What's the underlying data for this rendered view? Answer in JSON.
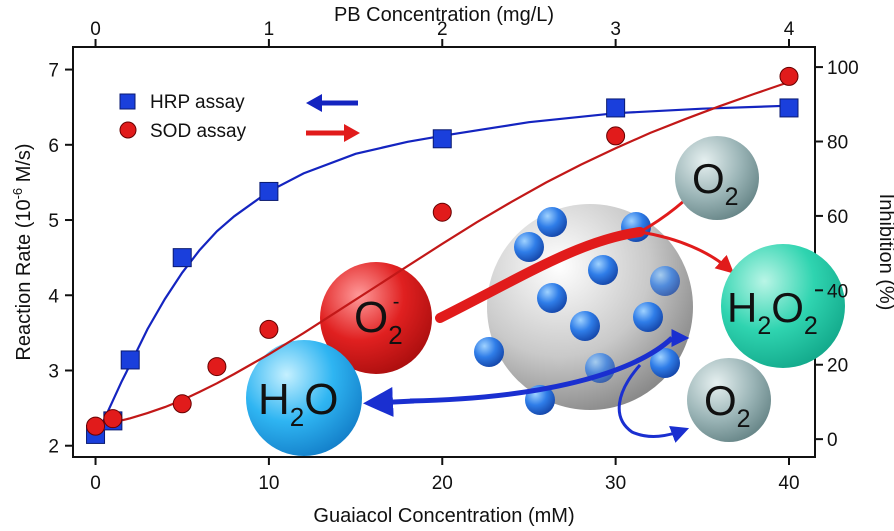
{
  "chart_data": {
    "type": "line",
    "x_bottom": {
      "label": "Guaiacol Concentration (mM)",
      "range": [
        -1.3,
        41.5
      ],
      "ticks": [
        "0",
        "10",
        "20",
        "30",
        "40"
      ],
      "tick_values": [
        0,
        10,
        20,
        30,
        40
      ]
    },
    "x_top": {
      "label": "PB Concentration (mg/L)",
      "ticks": [
        "0",
        "1",
        "2",
        "3",
        "4"
      ],
      "tick_values": [
        0,
        1,
        2,
        3,
        4
      ]
    },
    "y_left": {
      "label_main": "Reaction Rate (10",
      "label_sup": "-6",
      "label_end": " M/s)",
      "range": [
        1.85,
        7.3
      ],
      "ticks": [
        "2",
        "3",
        "4",
        "5",
        "6",
        "7"
      ],
      "tick_values": [
        2,
        3,
        4,
        5,
        6,
        7
      ]
    },
    "y_right": {
      "label": "Inhibition (%)",
      "range": [
        -4.8,
        105.4
      ],
      "ticks": [
        "0",
        "20",
        "40",
        "60",
        "80",
        "100"
      ],
      "tick_values": [
        0,
        20,
        40,
        60,
        80,
        100
      ]
    },
    "series": [
      {
        "name": "HRP assay",
        "axis": "left",
        "marker": "square",
        "color": "#1a3fdc",
        "line_color": "#1424c0",
        "arrow": "left",
        "x": [
          0,
          1,
          2,
          5,
          10,
          20,
          30,
          40
        ],
        "y": [
          2.15,
          2.33,
          3.14,
          4.5,
          5.38,
          6.08,
          6.49,
          6.49
        ],
        "fit": [
          [
            0,
            2.12
          ],
          [
            0.5,
            2.35
          ],
          [
            1,
            2.6
          ],
          [
            1.5,
            2.85
          ],
          [
            2,
            3.08
          ],
          [
            3,
            3.55
          ],
          [
            4,
            3.95
          ],
          [
            5,
            4.3
          ],
          [
            6,
            4.6
          ],
          [
            7,
            4.85
          ],
          [
            8,
            5.05
          ],
          [
            10,
            5.38
          ],
          [
            12,
            5.62
          ],
          [
            15,
            5.88
          ],
          [
            18,
            6.04
          ],
          [
            20,
            6.12
          ],
          [
            25,
            6.3
          ],
          [
            30,
            6.42
          ],
          [
            35,
            6.48
          ],
          [
            40,
            6.52
          ]
        ]
      },
      {
        "name": "SOD assay",
        "axis": "right",
        "marker": "circle",
        "color": "#e11b1b",
        "line_color": "#c21818",
        "arrow": "right",
        "x": [
          0,
          1,
          5,
          7,
          10,
          20,
          30,
          40
        ],
        "y": [
          3.5,
          5.5,
          9.5,
          19.5,
          29.5,
          61,
          81.5,
          97.5
        ],
        "fit": [
          [
            0,
            3.8
          ],
          [
            1,
            4.5
          ],
          [
            2,
            5.6
          ],
          [
            3,
            7.0
          ],
          [
            4,
            8.6
          ],
          [
            5,
            10.5
          ],
          [
            6,
            12.7
          ],
          [
            7,
            15.0
          ],
          [
            8,
            17.5
          ],
          [
            10,
            22.8
          ],
          [
            12,
            28.5
          ],
          [
            14,
            34.5
          ],
          [
            16,
            40.5
          ],
          [
            18,
            46.5
          ],
          [
            20,
            52.5
          ],
          [
            22,
            58.3
          ],
          [
            24,
            63.8
          ],
          [
            26,
            69.0
          ],
          [
            28,
            73.8
          ],
          [
            30,
            78.2
          ],
          [
            32,
            82.3
          ],
          [
            34,
            86.0
          ],
          [
            36,
            89.5
          ],
          [
            38,
            92.8
          ],
          [
            40,
            96.0
          ]
        ]
      }
    ],
    "legend": {
      "position": "top-left",
      "entries": [
        "HRP assay",
        "SOD assay"
      ]
    },
    "grid": false
  },
  "inset": {
    "superoxide": {
      "main": "O",
      "sub": "2",
      "sup": "-"
    },
    "water": {
      "main": "H",
      "sub": "2",
      "end": "O"
    },
    "peroxide": {
      "a": "H",
      "sub1": "2",
      "b": "O",
      "sub2": "2"
    },
    "oxygen_top": {
      "main": "O",
      "sub": "2"
    },
    "oxygen_bottom": {
      "main": "O",
      "sub": "2"
    }
  }
}
